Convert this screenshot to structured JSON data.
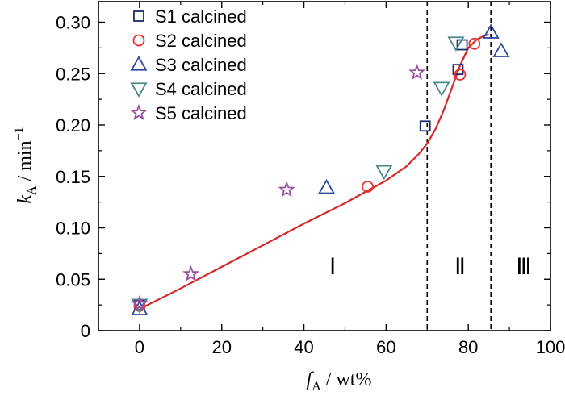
{
  "chart_data": {
    "type": "scatter",
    "xlabel": {
      "symbol": "f",
      "subscript": "A",
      "unit": " / wt%"
    },
    "ylabel": {
      "symbol": "k",
      "subscript": "A",
      "unit": " / min",
      "superscript": "−1"
    },
    "xlim": [
      -10,
      100
    ],
    "ylim": [
      0,
      0.32
    ],
    "xticks": [
      0,
      20,
      40,
      60,
      80,
      100
    ],
    "yticks": [
      0,
      0.05,
      0.1,
      0.15,
      0.2,
      0.25,
      0.3
    ],
    "ytick_labels": [
      "0",
      "0.05",
      "0.10",
      "0.15",
      "0.20",
      "0.25",
      "0.30"
    ],
    "xtick_labels": [
      "0",
      "20",
      "40",
      "60",
      "80",
      "100"
    ],
    "legend_position": "top-left",
    "series": [
      {
        "name": "S1 calcined",
        "marker": "square",
        "color": "#1f2a6b",
        "points": [
          [
            0,
            0.025
          ],
          [
            69.5,
            0.199
          ],
          [
            77.5,
            0.254
          ],
          [
            78.5,
            0.278
          ]
        ]
      },
      {
        "name": "S2 calcined",
        "marker": "circle",
        "color": "#e8302e",
        "points": [
          [
            0,
            0.024
          ],
          [
            55.5,
            0.14
          ],
          [
            78.0,
            0.249
          ],
          [
            81.5,
            0.279
          ]
        ]
      },
      {
        "name": "S3 calcined",
        "marker": "triangle-up",
        "color": "#2e4aa0",
        "points": [
          [
            0,
            0.021
          ],
          [
            45.5,
            0.139
          ],
          [
            85.5,
            0.29
          ],
          [
            88.0,
            0.272
          ]
        ]
      },
      {
        "name": "S4 calcined",
        "marker": "triangle-down",
        "color": "#4a8a8a",
        "points": [
          [
            0,
            0.025
          ],
          [
            59.5,
            0.155
          ],
          [
            73.5,
            0.236
          ],
          [
            77.0,
            0.28
          ]
        ]
      },
      {
        "name": "S5 calcined",
        "marker": "star",
        "color": "#9b4fa0",
        "points": [
          [
            0,
            0.026
          ],
          [
            12.5,
            0.055
          ],
          [
            35.8,
            0.137
          ],
          [
            67.5,
            0.251
          ]
        ]
      }
    ],
    "fit_curve": {
      "color": "#d42a2a",
      "points": [
        [
          0,
          0.021
        ],
        [
          10,
          0.041
        ],
        [
          20,
          0.062
        ],
        [
          30,
          0.083
        ],
        [
          40,
          0.104
        ],
        [
          50,
          0.124
        ],
        [
          60,
          0.146
        ],
        [
          65,
          0.16
        ],
        [
          68,
          0.172
        ],
        [
          70,
          0.182
        ],
        [
          72,
          0.196
        ],
        [
          74,
          0.214
        ],
        [
          76,
          0.236
        ],
        [
          78,
          0.258
        ],
        [
          80,
          0.275
        ],
        [
          82,
          0.283
        ],
        [
          84,
          0.287
        ],
        [
          85,
          0.288
        ]
      ]
    },
    "boundaries": [
      70,
      85.5
    ],
    "regions": [
      {
        "label": "Ⅰ",
        "x": 47,
        "y": 0.055
      },
      {
        "label": "Ⅱ",
        "x": 78,
        "y": 0.055
      },
      {
        "label": "Ⅲ",
        "x": 93.5,
        "y": 0.055
      }
    ]
  }
}
